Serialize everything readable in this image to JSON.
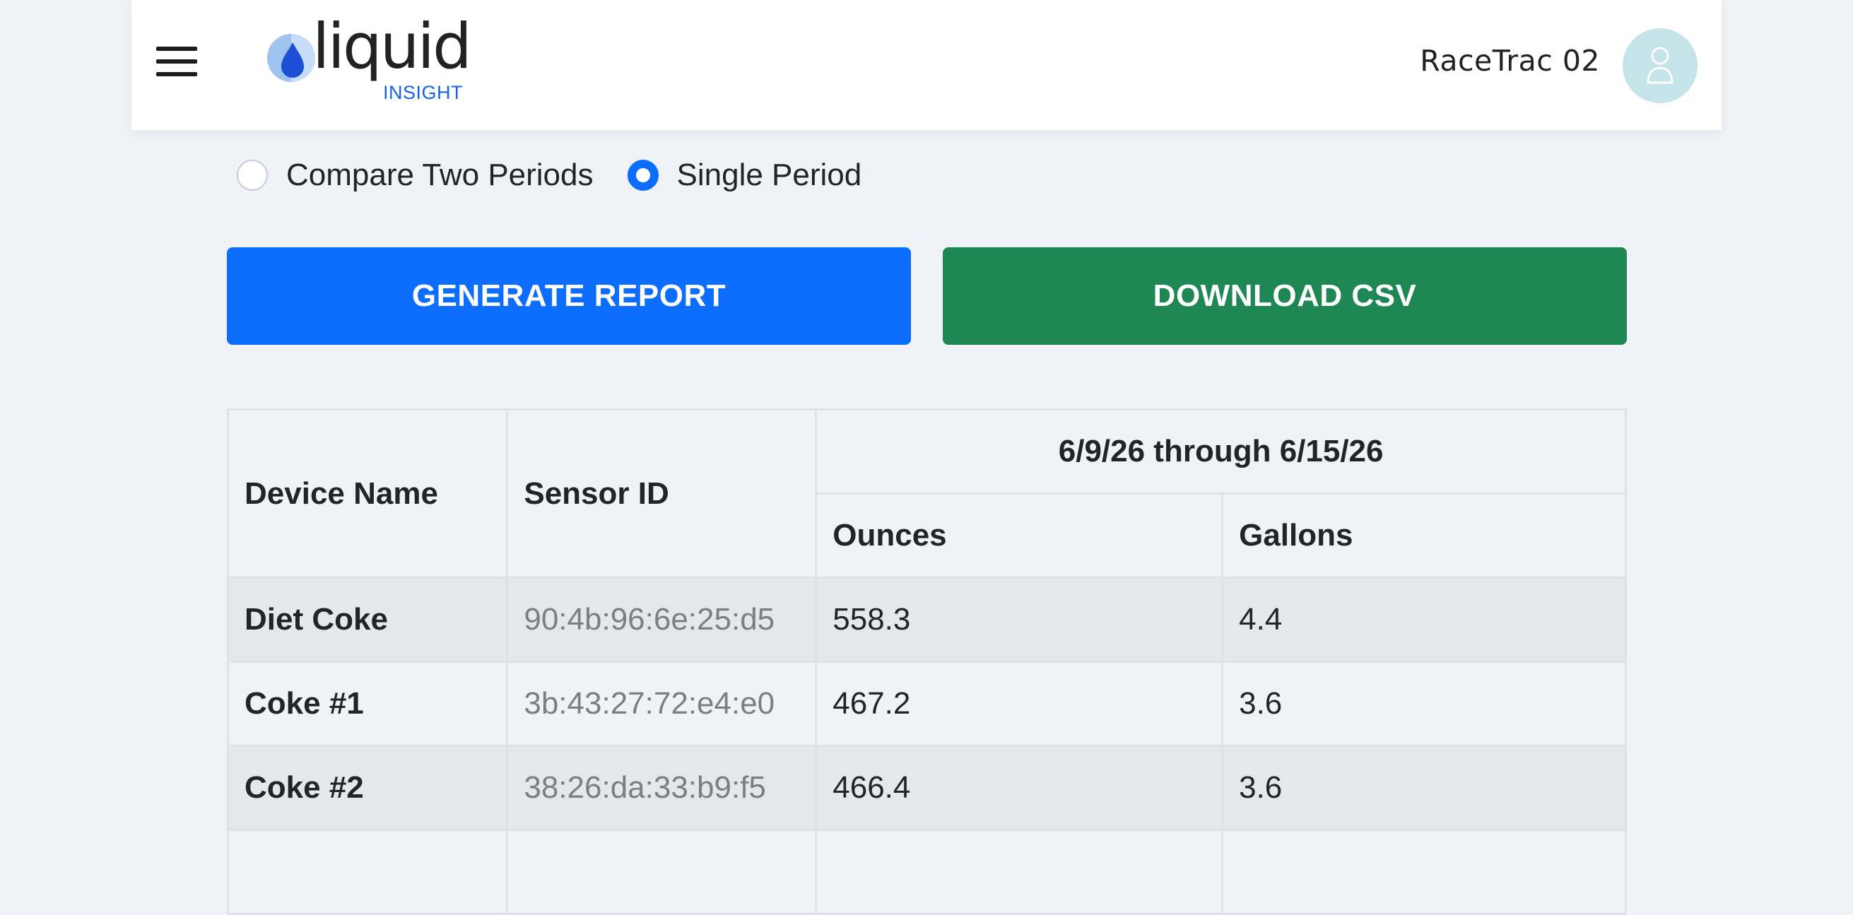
{
  "header": {
    "logo_word": "liquid",
    "logo_sub": "INSIGHT",
    "user_name": "RaceTrac 02"
  },
  "period_options": [
    {
      "label": "Compare Two Periods",
      "selected": false
    },
    {
      "label": "Single Period",
      "selected": true
    }
  ],
  "actions": {
    "generate_label": "GENERATE REPORT",
    "download_label": "DOWNLOAD CSV"
  },
  "table": {
    "col_device": "Device Name",
    "col_sensor": "Sensor ID",
    "period_header": "6/9/26 through 6/15/26",
    "col_ounces": "Ounces",
    "col_gallons": "Gallons",
    "rows": [
      {
        "device": "Diet Coke",
        "sensor": "90:4b:96:6e:25:d5",
        "ounces": "558.3",
        "gallons": "4.4"
      },
      {
        "device": "Coke #1",
        "sensor": "3b:43:27:72:e4:e0",
        "ounces": "467.2",
        "gallons": "3.6"
      },
      {
        "device": "Coke #2",
        "sensor": "38:26:da:33:b9:f5",
        "ounces": "466.4",
        "gallons": "3.6"
      },
      {
        "device": "",
        "sensor": "",
        "ounces": "",
        "gallons": ""
      }
    ]
  },
  "colors": {
    "primary": "#0d6efd",
    "success": "#1e8753",
    "background": "#eff3f8",
    "avatar": "#c4e4ea",
    "logo_accent": "#1663e8"
  }
}
